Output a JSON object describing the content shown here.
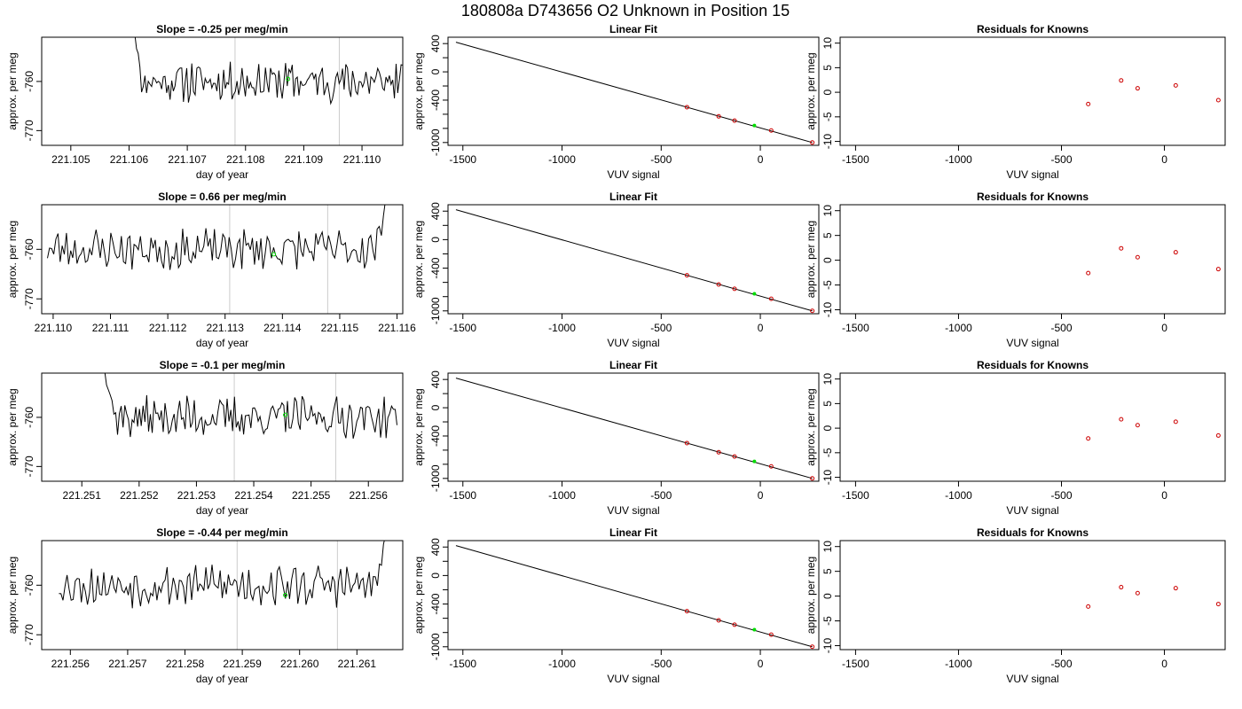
{
  "figure_title": "180808a      D743656    O2 Unknown in Position  15",
  "colors": {
    "line": "#000000",
    "vline": "#cccccc",
    "known": "#cc0000",
    "unknown": "#00dd00"
  },
  "chart_data": [
    {
      "type": "line",
      "title": "Slope =  -0.25  per meg/min",
      "xlabel": "day of year",
      "ylabel": "approx. per meg",
      "xlim": [
        221.1045,
        221.1107
      ],
      "ylim": [
        -773,
        -751
      ],
      "xticks": [
        "221.105",
        "221.106",
        "221.107",
        "221.108",
        "221.109",
        "221.110"
      ],
      "yticks": [
        "-760",
        "-770"
      ],
      "ytick_values": [
        -760,
        -770
      ],
      "x_start": 221.1061,
      "x_end": 221.1107,
      "vlines": [
        221.10782,
        221.10961
      ],
      "unknown_point": {
        "x": 221.10873,
        "y": -759.5
      },
      "trace_seed": 11,
      "trace_lead": 4,
      "trace_start": -750,
      "trace_end": -761
    },
    {
      "type": "line",
      "title": "Slope =  0.66  per meg/min",
      "xlabel": "day of year",
      "ylabel": "approx. per meg",
      "xlim": [
        221.1098,
        221.1161
      ],
      "ylim": [
        -773,
        -751
      ],
      "xticks": [
        "221.110",
        "221.111",
        "221.112",
        "221.113",
        "221.114",
        "221.115",
        "221.116"
      ],
      "yticks": [
        "-760",
        "-770"
      ],
      "ytick_values": [
        -760,
        -770
      ],
      "x_start": 221.1099,
      "x_end": 221.1158,
      "vlines": [
        221.11308,
        221.11479
      ],
      "unknown_point": {
        "x": 221.11385,
        "y": -761
      },
      "trace_seed": 23,
      "trace_lead": 0,
      "trace_start": -762,
      "trace_end": -750
    },
    {
      "type": "line",
      "title": "Slope =  -0.1  per meg/min",
      "xlabel": "day of year",
      "ylabel": "approx. per meg",
      "xlim": [
        221.2503,
        221.2566
      ],
      "ylim": [
        -773,
        -751
      ],
      "xticks": [
        "221.251",
        "221.252",
        "221.253",
        "221.254",
        "221.255",
        "221.256"
      ],
      "yticks": [
        "-760",
        "-770"
      ],
      "ytick_values": [
        -760,
        -770
      ],
      "x_start": 221.2514,
      "x_end": 221.2565,
      "vlines": [
        221.25366,
        221.25543
      ],
      "unknown_point": {
        "x": 221.25455,
        "y": -759.5
      },
      "trace_seed": 37,
      "trace_lead": 6,
      "trace_start": -751,
      "trace_end": -760
    },
    {
      "type": "line",
      "title": "Slope =  -0.44  per meg/min",
      "xlabel": "day of year",
      "ylabel": "approx. per meg",
      "xlim": [
        221.2555,
        221.2618
      ],
      "ylim": [
        -773,
        -751
      ],
      "xticks": [
        "221.256",
        "221.257",
        "221.258",
        "221.259",
        "221.260",
        "221.261"
      ],
      "yticks": [
        "-760",
        "-770"
      ],
      "ytick_values": [
        -760,
        -770
      ],
      "x_start": 221.2558,
      "x_end": 221.2615,
      "vlines": [
        221.25891,
        221.26066
      ],
      "unknown_point": {
        "x": 221.25975,
        "y": -762
      },
      "trace_seed": 53,
      "trace_lead": 0,
      "trace_start": -761,
      "trace_end": -750
    },
    {
      "type": "scatter",
      "title": "Linear Fit",
      "xlabel": "VUV signal",
      "ylabel": "approx. per meg",
      "xlim": [
        -1575,
        295
      ],
      "ylim": [
        -1040,
        490
      ],
      "xticks": [
        -1500,
        -1000,
        -500,
        0
      ],
      "yticks": [
        400,
        0,
        -400,
        -1000
      ],
      "line": {
        "x": [
          -1535,
          262
        ],
        "y": [
          420,
          -1000
        ]
      },
      "known_points": [
        {
          "x": -370,
          "y": -500
        },
        {
          "x": -210,
          "y": -630
        },
        {
          "x": -130,
          "y": -690
        },
        {
          "x": 55,
          "y": -830
        },
        {
          "x": 262,
          "y": -1000
        }
      ],
      "unknown_point": {
        "x": -30,
        "y": -760
      }
    },
    {
      "type": "scatter",
      "title": "Linear Fit",
      "xlabel": "VUV signal",
      "ylabel": "approx. per meg",
      "xlim": [
        -1575,
        295
      ],
      "ylim": [
        -1040,
        490
      ],
      "xticks": [
        -1500,
        -1000,
        -500,
        0
      ],
      "yticks": [
        400,
        0,
        -400,
        -1000
      ],
      "line": {
        "x": [
          -1535,
          262
        ],
        "y": [
          420,
          -1000
        ]
      },
      "known_points": [
        {
          "x": -370,
          "y": -500
        },
        {
          "x": -210,
          "y": -630
        },
        {
          "x": -130,
          "y": -690
        },
        {
          "x": 55,
          "y": -830
        },
        {
          "x": 262,
          "y": -1000
        }
      ],
      "unknown_point": {
        "x": -30,
        "y": -760
      }
    },
    {
      "type": "scatter",
      "title": "Linear Fit",
      "xlabel": "VUV signal",
      "ylabel": "approx. per meg",
      "xlim": [
        -1575,
        295
      ],
      "ylim": [
        -1040,
        490
      ],
      "xticks": [
        -1500,
        -1000,
        -500,
        0
      ],
      "yticks": [
        400,
        0,
        -400,
        -1000
      ],
      "line": {
        "x": [
          -1535,
          262
        ],
        "y": [
          420,
          -1000
        ]
      },
      "known_points": [
        {
          "x": -370,
          "y": -500
        },
        {
          "x": -210,
          "y": -630
        },
        {
          "x": -130,
          "y": -690
        },
        {
          "x": 55,
          "y": -830
        },
        {
          "x": 262,
          "y": -1000
        }
      ],
      "unknown_point": {
        "x": -30,
        "y": -760
      }
    },
    {
      "type": "scatter",
      "title": "Linear Fit",
      "xlabel": "VUV signal",
      "ylabel": "approx. per meg",
      "xlim": [
        -1575,
        295
      ],
      "ylim": [
        -1040,
        490
      ],
      "xticks": [
        -1500,
        -1000,
        -500,
        0
      ],
      "yticks": [
        400,
        0,
        -400,
        -1000
      ],
      "line": {
        "x": [
          -1535,
          262
        ],
        "y": [
          420,
          -1000
        ]
      },
      "known_points": [
        {
          "x": -370,
          "y": -500
        },
        {
          "x": -210,
          "y": -630
        },
        {
          "x": -130,
          "y": -690
        },
        {
          "x": 55,
          "y": -830
        },
        {
          "x": 262,
          "y": -1000
        }
      ],
      "unknown_point": {
        "x": -30,
        "y": -760
      }
    },
    {
      "type": "scatter",
      "title": "Residuals for Knowns",
      "xlabel": "VUV signal",
      "ylabel": "approx. per meg",
      "xlim": [
        -1575,
        295
      ],
      "ylim": [
        -10.8,
        11.2
      ],
      "xticks": [
        -1500,
        -1000,
        -500,
        0
      ],
      "yticks": [
        10,
        5,
        0,
        -5,
        -10
      ],
      "points": [
        {
          "x": -370,
          "y": -2.4
        },
        {
          "x": -210,
          "y": 2.4
        },
        {
          "x": -130,
          "y": 0.8
        },
        {
          "x": 55,
          "y": 1.4
        },
        {
          "x": 262,
          "y": -1.6
        }
      ]
    },
    {
      "type": "scatter",
      "title": "Residuals for Knowns",
      "xlabel": "VUV signal",
      "ylabel": "approx. per meg",
      "xlim": [
        -1575,
        295
      ],
      "ylim": [
        -10.8,
        11.2
      ],
      "xticks": [
        -1500,
        -1000,
        -500,
        0
      ],
      "yticks": [
        10,
        5,
        0,
        -5,
        -10
      ],
      "points": [
        {
          "x": -370,
          "y": -2.6
        },
        {
          "x": -210,
          "y": 2.4
        },
        {
          "x": -130,
          "y": 0.6
        },
        {
          "x": 55,
          "y": 1.6
        },
        {
          "x": 262,
          "y": -1.8
        }
      ]
    },
    {
      "type": "scatter",
      "title": "Residuals for Knowns",
      "xlabel": "VUV signal",
      "ylabel": "approx. per meg",
      "xlim": [
        -1575,
        295
      ],
      "ylim": [
        -10.8,
        11.2
      ],
      "xticks": [
        -1500,
        -1000,
        -500,
        0
      ],
      "yticks": [
        10,
        5,
        0,
        -5,
        -10
      ],
      "points": [
        {
          "x": -370,
          "y": -2.1
        },
        {
          "x": -210,
          "y": 1.8
        },
        {
          "x": -130,
          "y": 0.6
        },
        {
          "x": 55,
          "y": 1.3
        },
        {
          "x": 262,
          "y": -1.5
        }
      ]
    },
    {
      "type": "scatter",
      "title": "Residuals for Knowns",
      "xlabel": "VUV signal",
      "ylabel": "approx. per meg",
      "xlim": [
        -1575,
        295
      ],
      "ylim": [
        -10.8,
        11.2
      ],
      "xticks": [
        -1500,
        -1000,
        -500,
        0
      ],
      "yticks": [
        10,
        5,
        0,
        -5,
        -10
      ],
      "points": [
        {
          "x": -370,
          "y": -2.1
        },
        {
          "x": -210,
          "y": 1.8
        },
        {
          "x": -130,
          "y": 0.6
        },
        {
          "x": 55,
          "y": 1.6
        },
        {
          "x": 262,
          "y": -1.6
        }
      ]
    }
  ]
}
